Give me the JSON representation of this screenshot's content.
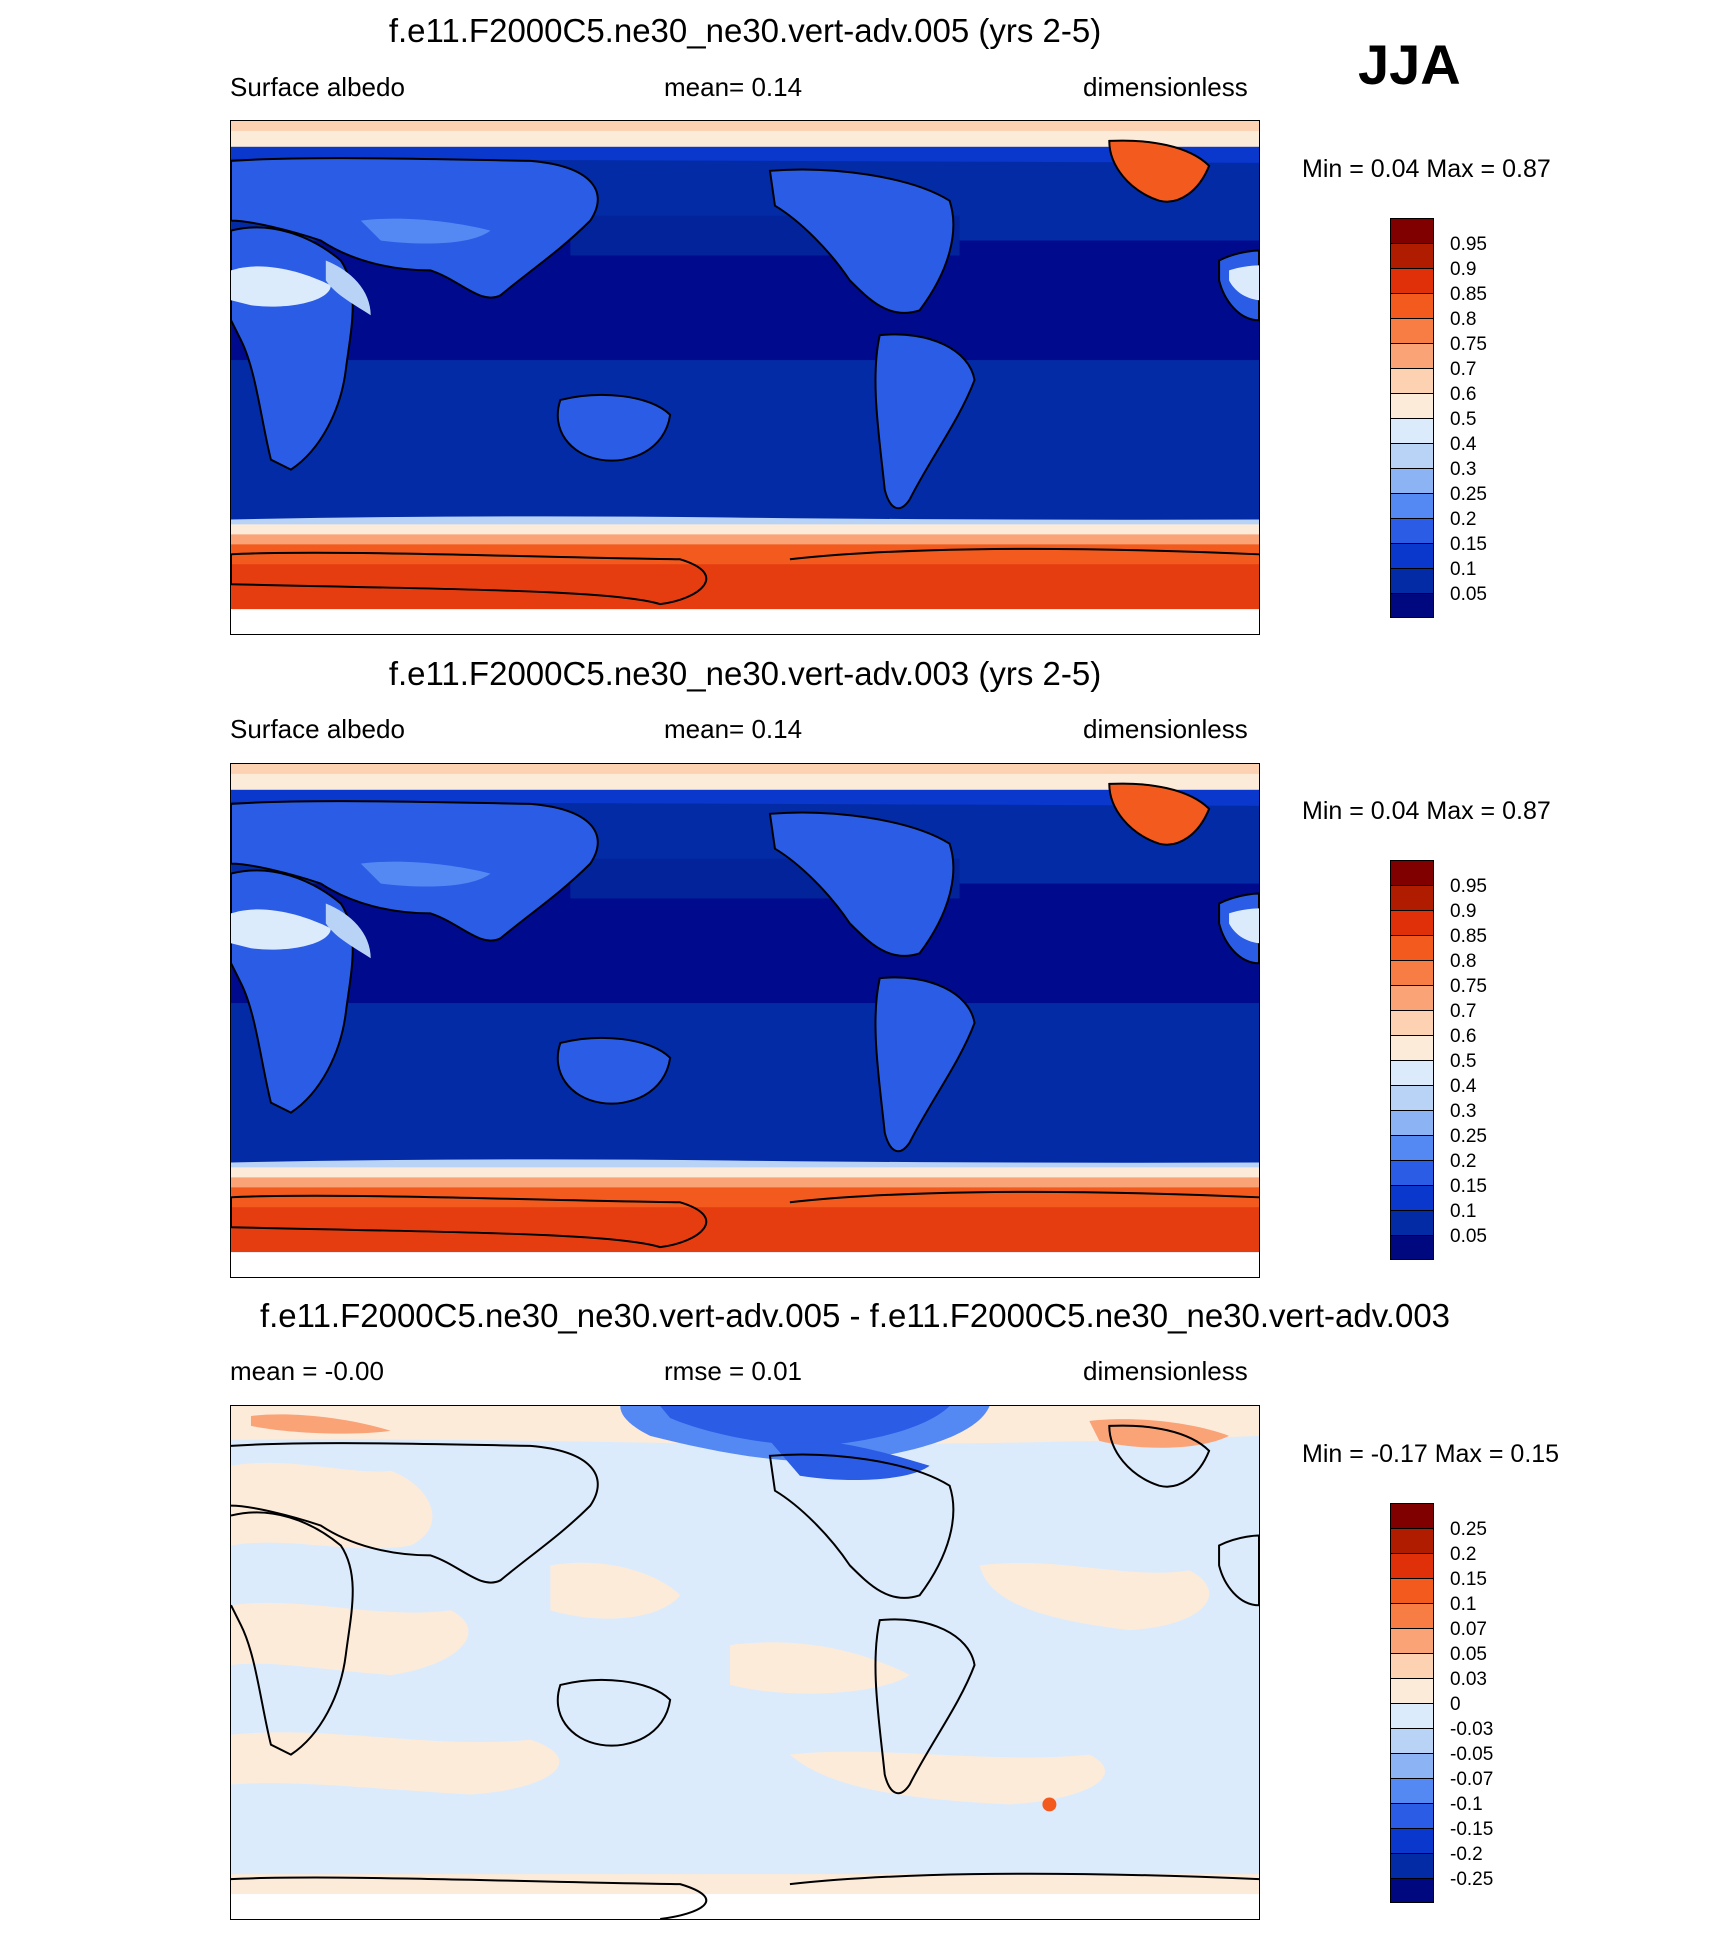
{
  "season": "JJA",
  "panels": [
    {
      "title": "f.e11.F2000C5.ne30_ne30.vert-adv.005 (yrs 2-5)",
      "left_label": "Surface albedo",
      "center_label": "mean=   0.14",
      "right_label": "dimensionless",
      "minmax": "Min =    0.04 Max =    0.87",
      "colorbar": {
        "labels": [
          "0.95",
          "0.9",
          "0.85",
          "0.8",
          "0.75",
          "0.7",
          "0.6",
          "0.5",
          "0.4",
          "0.3",
          "0.25",
          "0.2",
          "0.15",
          "0.1",
          "0.05"
        ],
        "colors": [
          "#800000",
          "#B01C00",
          "#E0300A",
          "#F25A1E",
          "#F77D45",
          "#FAA377",
          "#FCD2B2",
          "#FDEBDA",
          "#DCEBFB",
          "#B9D3F7",
          "#8CB3F4",
          "#5488F2",
          "#2A5CE6",
          "#0A37CC",
          "#032BA6",
          "#000880"
        ]
      },
      "map": {
        "field": "Surface albedo",
        "palette_keys": {
          "ocean_deep": "#000A8C",
          "ocean": "#0A2FB4",
          "land": "#2A5CE6",
          "land_light": "#5488F2",
          "desert": "#B9D3F7",
          "snow_light": "#FDEBDA",
          "ice": "#F25A1E",
          "ice_dark": "#E0300A"
        }
      }
    },
    {
      "title": "f.e11.F2000C5.ne30_ne30.vert-adv.003 (yrs 2-5)",
      "left_label": "Surface albedo",
      "center_label": "mean=   0.14",
      "right_label": "dimensionless",
      "minmax": "Min =    0.04 Max =    0.87",
      "colorbar": {
        "labels": [
          "0.95",
          "0.9",
          "0.85",
          "0.8",
          "0.75",
          "0.7",
          "0.6",
          "0.5",
          "0.4",
          "0.3",
          "0.25",
          "0.2",
          "0.15",
          "0.1",
          "0.05"
        ],
        "colors": [
          "#800000",
          "#B01C00",
          "#E0300A",
          "#F25A1E",
          "#F77D45",
          "#FAA377",
          "#FCD2B2",
          "#FDEBDA",
          "#DCEBFB",
          "#B9D3F7",
          "#8CB3F4",
          "#5488F2",
          "#2A5CE6",
          "#0A37CC",
          "#032BA6",
          "#000880"
        ]
      },
      "map": {
        "field": "Surface albedo",
        "palette_keys": {
          "ocean_deep": "#000A8C",
          "ocean": "#0A2FB4",
          "land": "#2A5CE6",
          "land_light": "#5488F2",
          "desert": "#B9D3F7",
          "snow_light": "#FDEBDA",
          "ice": "#F25A1E",
          "ice_dark": "#E0300A"
        }
      }
    },
    {
      "title": "f.e11.F2000C5.ne30_ne30.vert-adv.005 - f.e11.F2000C5.ne30_ne30.vert-adv.003",
      "left_label": "mean =  -0.00",
      "center_label": "rmse =   0.01",
      "right_label": "dimensionless",
      "minmax": "Min =  -0.17 Max =    0.15",
      "colorbar": {
        "labels": [
          "0.25",
          "0.2",
          "0.15",
          "0.1",
          "0.07",
          "0.05",
          "0.03",
          "0",
          "-0.03",
          "-0.05",
          "-0.07",
          "-0.1",
          "-0.15",
          "-0.2",
          "-0.25"
        ],
        "colors": [
          "#800000",
          "#B01C00",
          "#E0300A",
          "#F25A1E",
          "#F77D45",
          "#FAA377",
          "#FCD2B2",
          "#FDEBDA",
          "#DCEBFB",
          "#B9D3F7",
          "#8CB3F4",
          "#5488F2",
          "#2A5CE6",
          "#0A37CC",
          "#032BA6",
          "#000880"
        ]
      },
      "map": {
        "field": "difference",
        "palette_keys": {
          "pos_small": "#FDEBDA",
          "neg_small": "#DCEBFB",
          "neg_mid": "#5488F2",
          "neg_large": "#2A5CE6",
          "pos_mid": "#FAA377"
        }
      }
    }
  ]
}
